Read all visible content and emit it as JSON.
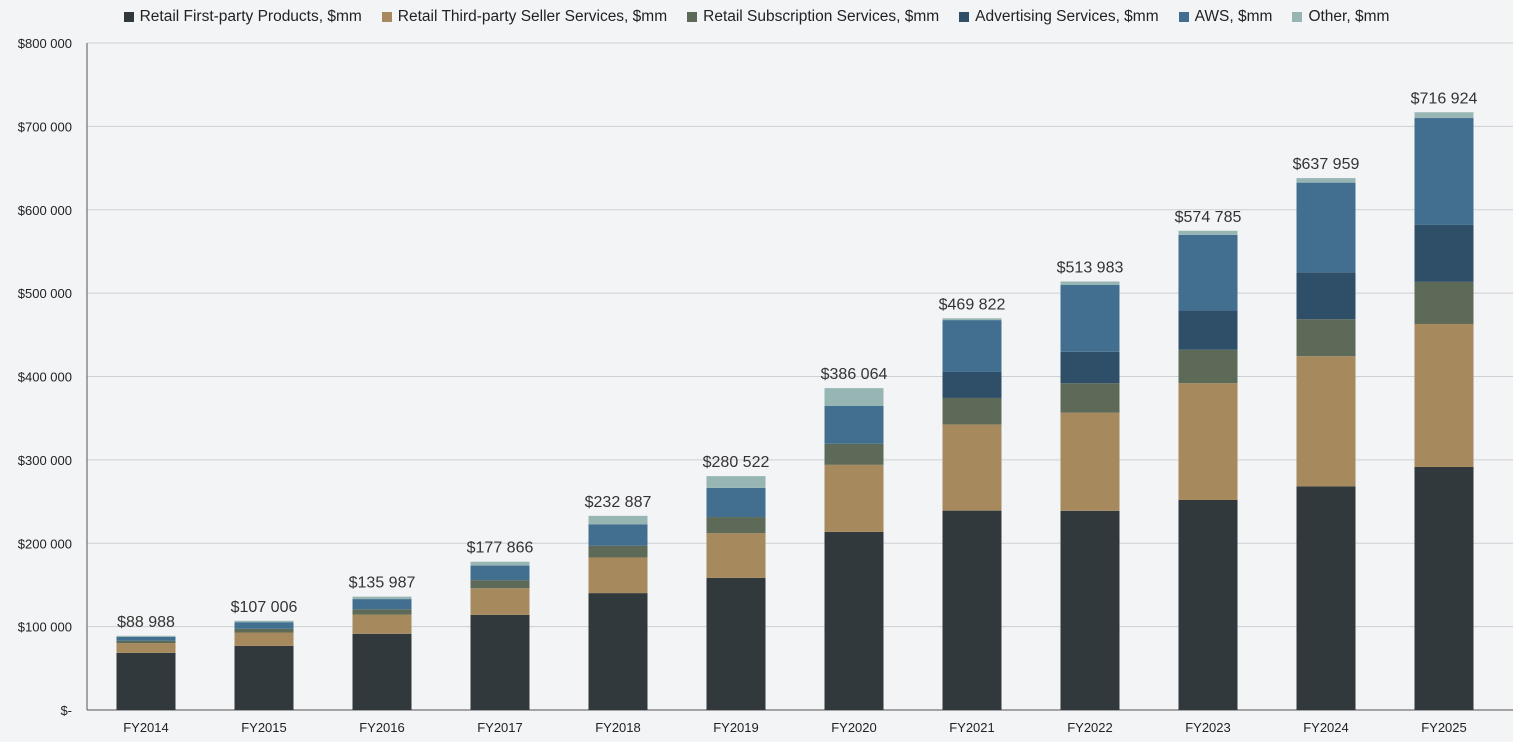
{
  "chart_data": {
    "type": "bar",
    "stacked": true,
    "title": "",
    "xlabel": "",
    "ylabel": "",
    "ylim": [
      0,
      800000
    ],
    "yticks": [
      0,
      100000,
      200000,
      300000,
      400000,
      500000,
      600000,
      700000,
      800000
    ],
    "ytick_labels": [
      "$-",
      "$100 000",
      "$200 000",
      "$300 000",
      "$400 000",
      "$500 000",
      "$600 000",
      "$700 000",
      "$800 000"
    ],
    "grid": true,
    "legend_position": "top",
    "categories": [
      "FY2014",
      "FY2015",
      "FY2016",
      "FY2017",
      "FY2018",
      "FY2019",
      "FY2020",
      "FY2021",
      "FY2022",
      "FY2023",
      "FY2024",
      "FY2025"
    ],
    "series": [
      {
        "name": "Retail First-party Products, $mm",
        "color": "#31393c",
        "values": [
          68513,
          76863,
          91431,
          114152,
          140211,
          158439,
          213573,
          239150,
          238967,
          251902,
          268244,
          291500
        ]
      },
      {
        "name": "Retail Third-party Seller Services, $mm",
        "color": "#a68a5e",
        "values": [
          11747,
          16086,
          22993,
          31881,
          42745,
          53762,
          80461,
          103366,
          117716,
          140053,
          156146,
          171500
        ]
      },
      {
        "name": "Retail Subscription Services, $mm",
        "color": "#5d6a58",
        "values": [
          2762,
          4467,
          6394,
          9721,
          14168,
          19210,
          25207,
          31768,
          35218,
          40209,
          44374,
          50500
        ]
      },
      {
        "name": "Advertising Services, $mm",
        "color": "#2f4f69",
        "values": [
          0,
          0,
          0,
          0,
          0,
          0,
          0,
          31160,
          37739,
          46906,
          56214,
          68300
        ]
      },
      {
        "name": "AWS, $mm",
        "color": "#426f8f",
        "values": [
          4644,
          7880,
          12219,
          17459,
          25655,
          35026,
          45370,
          62202,
          80096,
          90757,
          107556,
          128200
        ]
      },
      {
        "name": "Other, $mm",
        "color": "#97b5b3",
        "values": [
          1322,
          1710,
          2950,
          4653,
          10108,
          14085,
          21453,
          2176,
          4247,
          4958,
          5425,
          6924
        ]
      }
    ],
    "totals": [
      88988,
      107006,
      135987,
      177866,
      232887,
      280522,
      386064,
      469822,
      513983,
      574785,
      637959,
      716924
    ],
    "total_labels": [
      "$88 988",
      "$107 006",
      "$135 987",
      "$177 866",
      "$232 887",
      "$280 522",
      "$386 064",
      "$469 822",
      "$513 983",
      "$574 785",
      "$637 959",
      "$716 924"
    ]
  }
}
